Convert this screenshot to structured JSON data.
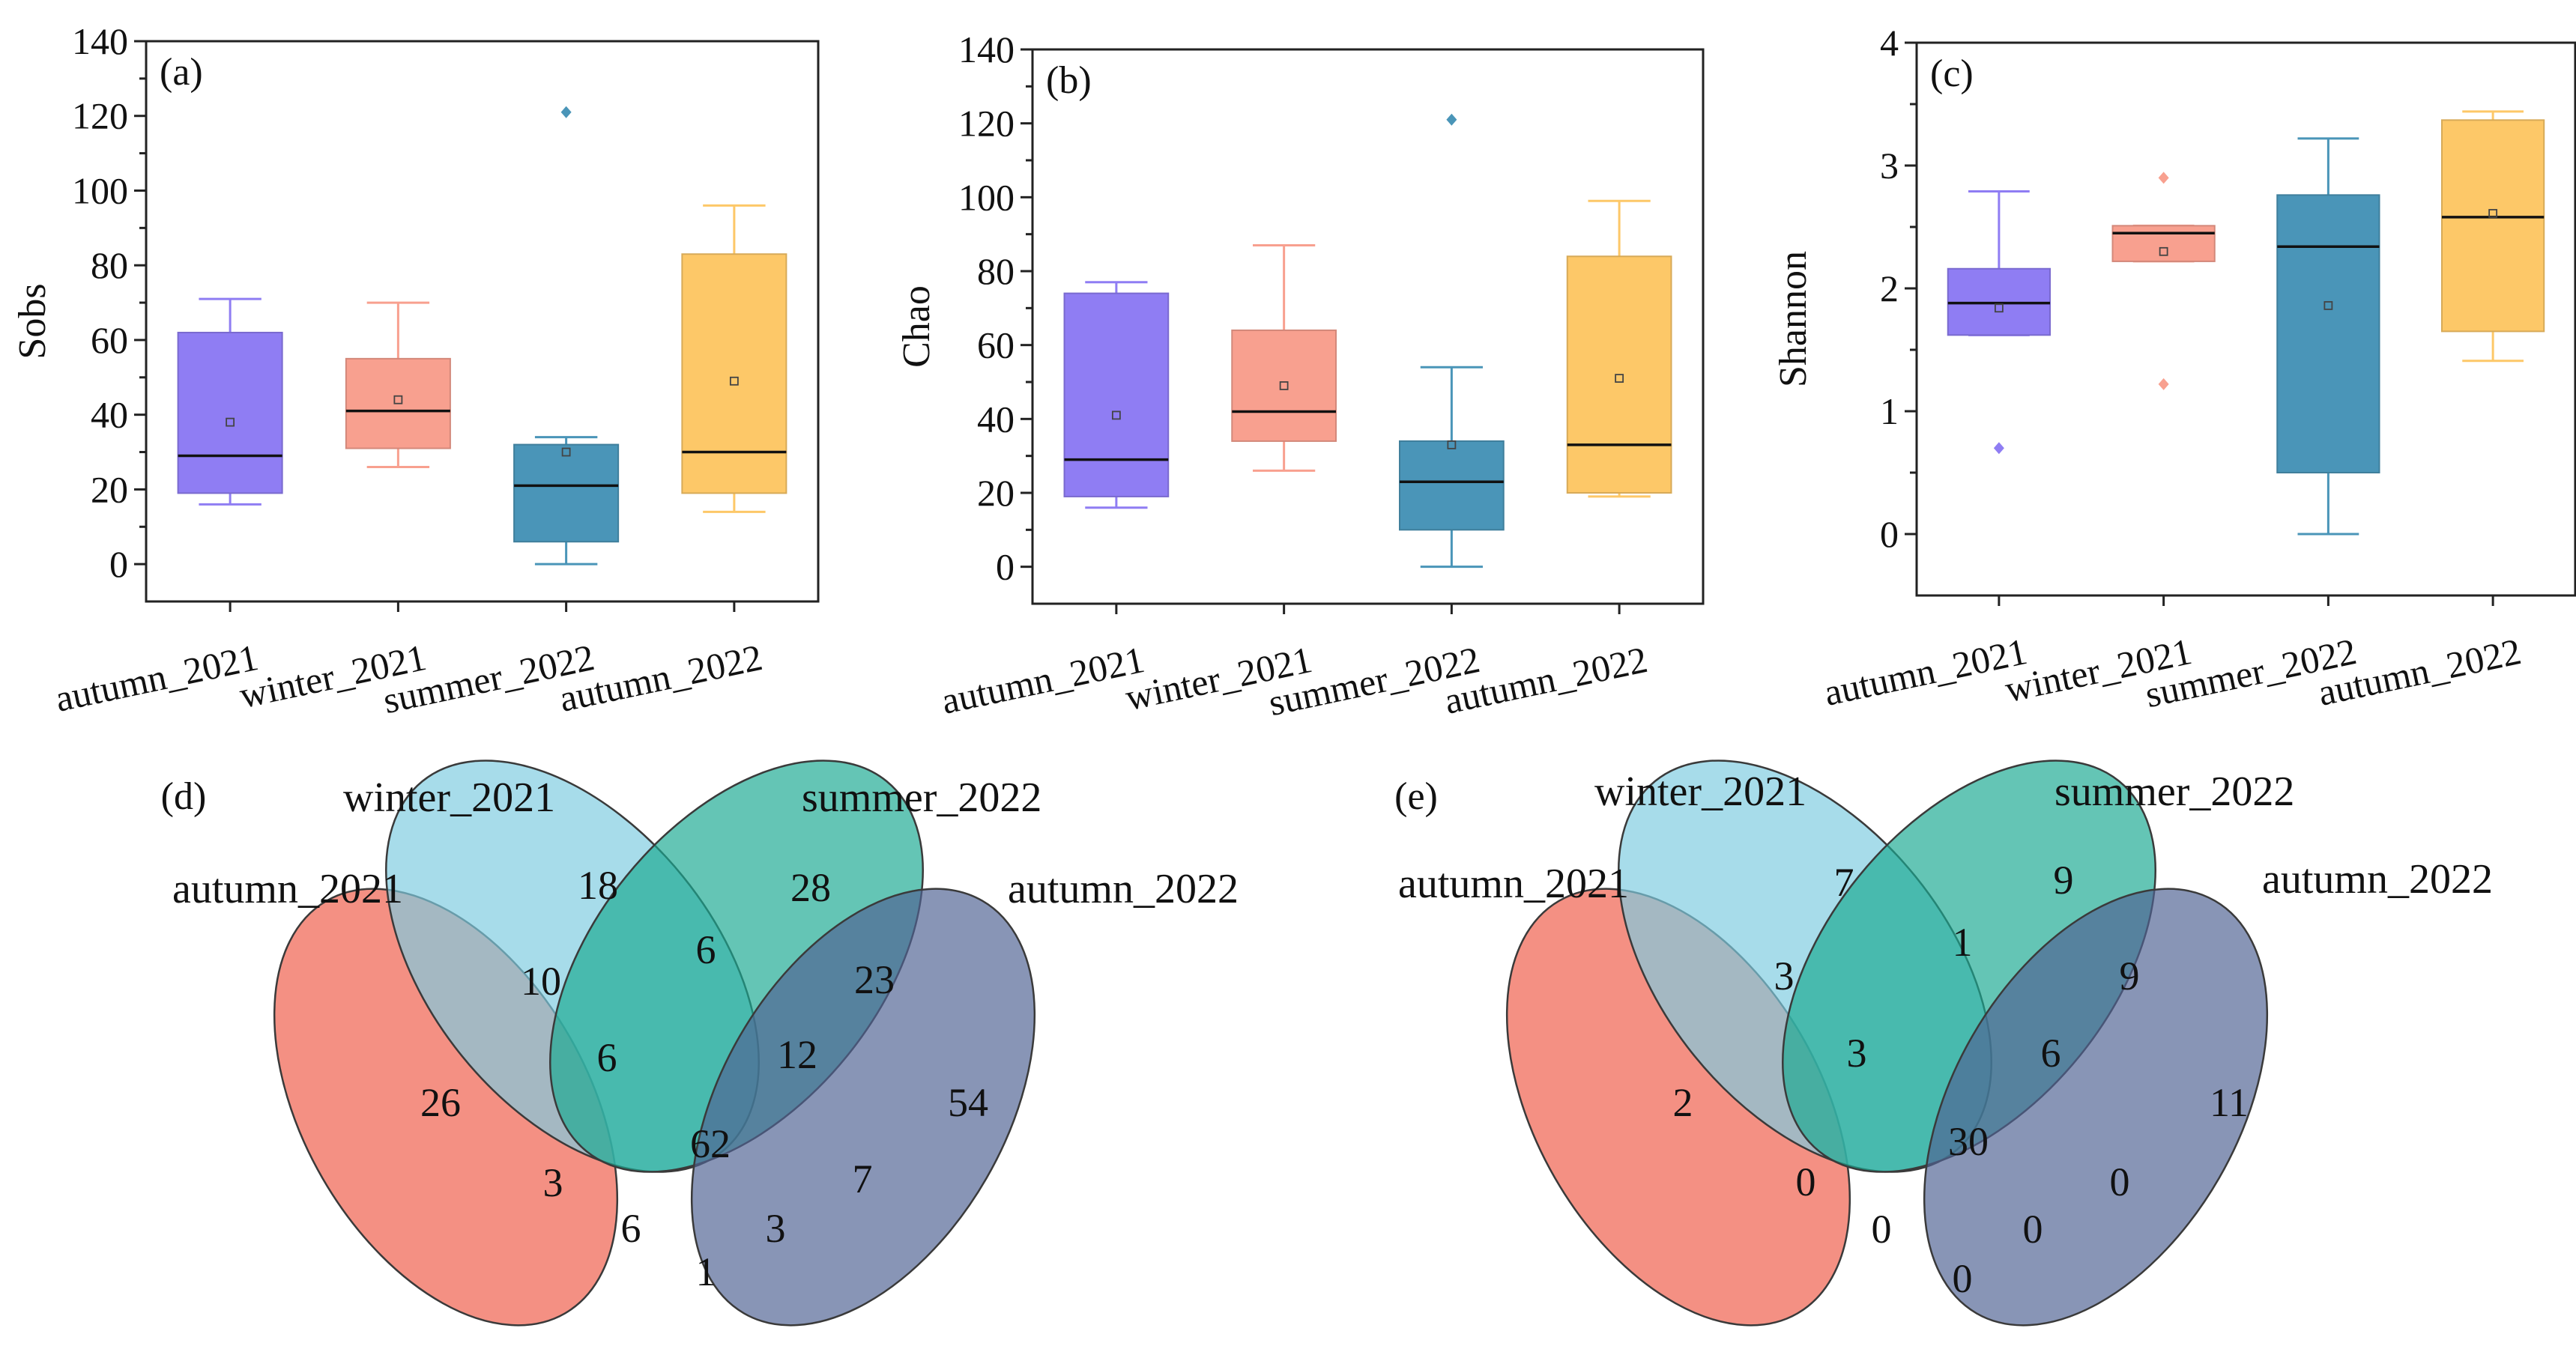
{
  "chart_data": [
    {
      "type": "box",
      "panel": "(a)",
      "ylabel": "Sobs",
      "ylim": [
        -10,
        140
      ],
      "yticks": [
        0,
        20,
        40,
        60,
        80,
        100,
        120,
        140
      ],
      "categories": [
        "autumn_2021",
        "winter_2021",
        "summer_2022",
        "autumn_2022"
      ],
      "colors": [
        "#8f7df3",
        "#f8a08f",
        "#4a95b8",
        "#fdc868"
      ],
      "boxes": [
        {
          "min": 16,
          "q1": 19,
          "median": 29,
          "q3": 62,
          "max": 71,
          "mean": 38,
          "outliers": []
        },
        {
          "min": 26,
          "q1": 31,
          "median": 41,
          "q3": 55,
          "max": 70,
          "mean": 44,
          "outliers": []
        },
        {
          "min": 0,
          "q1": 6,
          "median": 21,
          "q3": 32,
          "max": 34,
          "mean": 30,
          "outliers": [
            121
          ]
        },
        {
          "min": 14,
          "q1": 19,
          "median": 30,
          "q3": 83,
          "max": 96,
          "mean": 49,
          "outliers": []
        }
      ]
    },
    {
      "type": "box",
      "panel": "(b)",
      "ylabel": "Chao",
      "ylim": [
        -10,
        140
      ],
      "yticks": [
        0,
        20,
        40,
        60,
        80,
        100,
        120,
        140
      ],
      "categories": [
        "autumn_2021",
        "winter_2021",
        "summer_2022",
        "autumn_2022"
      ],
      "colors": [
        "#8f7df3",
        "#f8a08f",
        "#4a95b8",
        "#fdc868"
      ],
      "boxes": [
        {
          "min": 16,
          "q1": 19,
          "median": 29,
          "q3": 74,
          "max": 77,
          "mean": 41,
          "outliers": []
        },
        {
          "min": 26,
          "q1": 34,
          "median": 42,
          "q3": 64,
          "max": 87,
          "mean": 49,
          "outliers": []
        },
        {
          "min": 0,
          "q1": 10,
          "median": 23,
          "q3": 34,
          "max": 54,
          "mean": 33,
          "outliers": [
            121
          ]
        },
        {
          "min": 19,
          "q1": 20,
          "median": 33,
          "q3": 84,
          "max": 99,
          "mean": 51,
          "outliers": []
        }
      ]
    },
    {
      "type": "box",
      "panel": "(c)",
      "ylabel": "Shannon",
      "ylim": [
        -0.5,
        4
      ],
      "yticks": [
        0,
        1,
        2,
        3,
        4
      ],
      "categories": [
        "autumn_2021",
        "winter_2021",
        "summer_2022",
        "autumn_2022"
      ],
      "colors": [
        "#8f7df3",
        "#f8a08f",
        "#4a95b8",
        "#fdc868"
      ],
      "boxes": [
        {
          "min": 1.62,
          "q1": 1.62,
          "median": 1.88,
          "q3": 2.16,
          "max": 2.79,
          "mean": 1.84,
          "outliers": [
            0.7
          ]
        },
        {
          "min": 2.22,
          "q1": 2.22,
          "median": 2.45,
          "q3": 2.51,
          "max": 2.51,
          "mean": 2.3,
          "outliers": [
            2.9,
            1.22
          ]
        },
        {
          "min": 0.0,
          "q1": 0.5,
          "median": 2.34,
          "q3": 2.76,
          "max": 3.22,
          "mean": 1.86,
          "outliers": []
        },
        {
          "min": 1.41,
          "q1": 1.65,
          "median": 2.58,
          "q3": 3.37,
          "max": 3.44,
          "mean": 2.61,
          "outliers": []
        }
      ]
    },
    {
      "type": "venn",
      "panel": "(d)",
      "sets": [
        "autumn_2021",
        "winter_2021",
        "summer_2022",
        "autumn_2022"
      ],
      "colors": [
        "#ef5b48",
        "#7dcbe0",
        "#1aaa92",
        "#4f6394"
      ],
      "regions": {
        "A_only": 26,
        "W_only": 18,
        "S_only": 28,
        "U_only": 54,
        "AW": 10,
        "WS": 6,
        "SU": 23,
        "AU": 1,
        "AWS": 6,
        "WSU": 12,
        "ASU": 3,
        "AWU": 3,
        "AS": 6,
        "WU": 7,
        "all": 62
      }
    },
    {
      "type": "venn",
      "panel": "(e)",
      "sets": [
        "autumn_2021",
        "winter_2021",
        "summer_2022",
        "autumn_2022"
      ],
      "colors": [
        "#ef5b48",
        "#7dcbe0",
        "#1aaa92",
        "#4f6394"
      ],
      "regions": {
        "A_only": 2,
        "W_only": 7,
        "S_only": 9,
        "U_only": 11,
        "AW": 3,
        "WS": 1,
        "SU": 9,
        "AU": 0,
        "AWS": 3,
        "WSU": 6,
        "ASU": 0,
        "AWU": 0,
        "AS": 0,
        "WU": 0,
        "all": 30
      }
    }
  ]
}
